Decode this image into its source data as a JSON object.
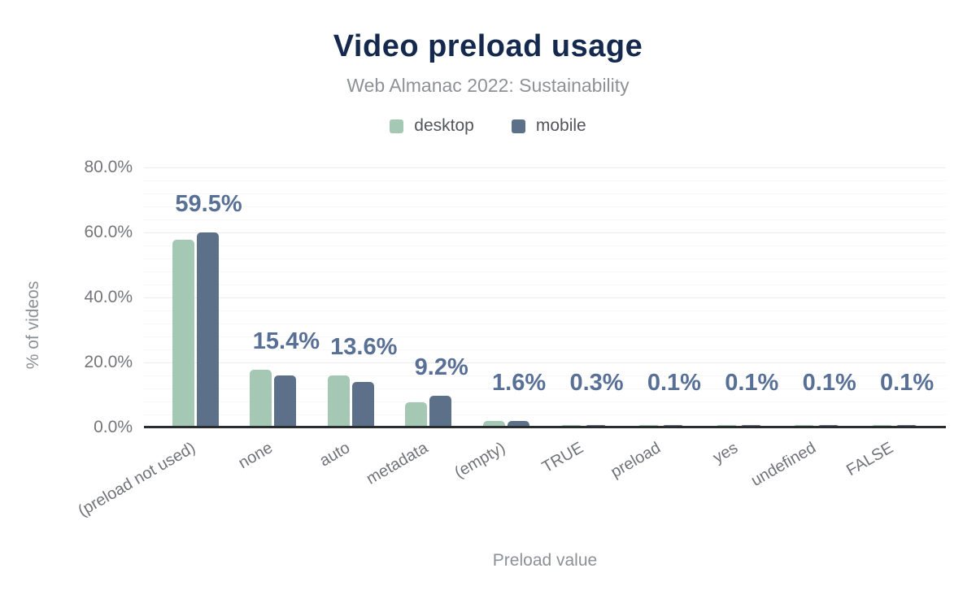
{
  "chart_data": {
    "type": "bar",
    "title": "Video preload usage",
    "subtitle": "Web Almanac 2022: Sustainability",
    "xlabel": "Preload value",
    "ylabel": "% of videos",
    "categories": [
      "(preload not used)",
      "none",
      "auto",
      "metadata",
      "(empty)",
      "TRUE",
      "preload",
      "yes",
      "undefined",
      "FALSE"
    ],
    "series": [
      {
        "name": "desktop",
        "color": "#a4c8b3",
        "values": [
          57.2,
          17.3,
          15.4,
          7.2,
          1.5,
          0.3,
          0.1,
          0.1,
          0.1,
          0.1
        ]
      },
      {
        "name": "mobile",
        "color": "#5d7089",
        "values": [
          59.5,
          15.4,
          13.6,
          9.2,
          1.6,
          0.3,
          0.1,
          0.1,
          0.1,
          0.1
        ]
      }
    ],
    "data_labels": [
      "59.5%",
      "15.4%",
      "13.6%",
      "9.2%",
      "1.6%",
      "0.3%",
      "0.1%",
      "0.1%",
      "0.1%",
      "0.1%"
    ],
    "data_label_series": "mobile",
    "y_ticks": [
      "0.0%",
      "20.0%",
      "40.0%",
      "60.0%",
      "80.0%"
    ],
    "y_tick_values": [
      0,
      20,
      40,
      60,
      80
    ],
    "ylim": [
      0,
      80
    ],
    "grid": {
      "on": true,
      "major_step": 20,
      "minor_step": 4
    },
    "legend_position": "top",
    "colors": {
      "title": "#14294d",
      "subtitle": "#8e9195",
      "legend_text": "#53555b",
      "tick_text": "#74767b",
      "axis_title_text": "#8d9094",
      "data_label": "#586f96",
      "axis_line": "#2a2d30",
      "gridline_major": "#ededed",
      "gridline_minor": "#f7f7f7",
      "background": "#ffffff"
    }
  }
}
